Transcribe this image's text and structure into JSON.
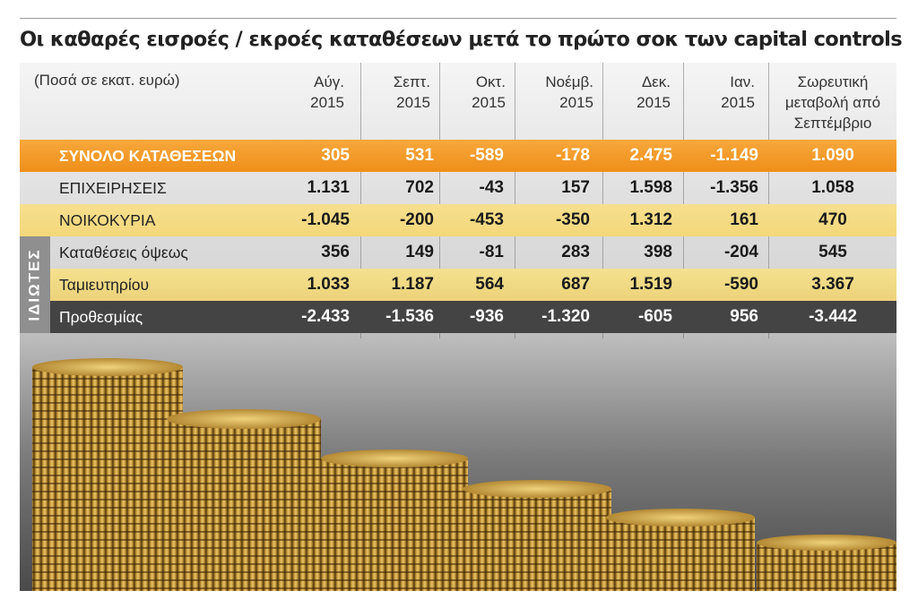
{
  "title": "Οι καθαρές εισροές / εκροές καταθέσεων μετά το πρώτο σοκ των capital controls",
  "unit_note": "(Ποσά σε εκατ. ευρώ)",
  "side_label": "ΙΔΙΩΤΕΣ",
  "columns": [
    {
      "line1": "Αύγ.",
      "line2": "2015"
    },
    {
      "line1": "Σεπτ.",
      "line2": "2015"
    },
    {
      "line1": "Οκτ.",
      "line2": "2015"
    },
    {
      "line1": "Νοέμβ.",
      "line2": "2015"
    },
    {
      "line1": "Δεκ.",
      "line2": "2015"
    },
    {
      "line1": "Ιαν.",
      "line2": "2015"
    },
    {
      "line1": "Σωρευτική",
      "line2": "μεταβολή από",
      "line3": "Σεπτέμβριο"
    }
  ],
  "colors": {
    "total_row": "#f0931e",
    "highlight_row": "#f4da80",
    "dark_row": "#444444"
  },
  "chart_data": {
    "type": "table",
    "title": "Οι καθαρές εισροές / εκροές καταθέσεων μετά το πρώτο σοκ των capital controls",
    "categories": [
      "Αύγ. 2015",
      "Σεπτ. 2015",
      "Οκτ. 2015",
      "Νοέμβ. 2015",
      "Δεκ. 2015",
      "Ιαν. 2015",
      "Σωρευτική μεταβολή από Σεπτέμβριο"
    ],
    "rows": [
      {
        "label": "ΣΥΝΟΛΟ ΚΑΤΑΘΕΣΕΩΝ",
        "values": [
          "305",
          "531",
          "-589",
          "-178",
          "2.475",
          "-1.149",
          "1.090"
        ]
      },
      {
        "label": "ΕΠΙΧΕΙΡΗΣΕΙΣ",
        "values": [
          "1.131",
          "702",
          "-43",
          "157",
          "1.598",
          "-1.356",
          "1.058"
        ]
      },
      {
        "label": "ΝΟΙΚΟΚΥΡΙΑ",
        "values": [
          "-1.045",
          "-200",
          "-453",
          "-350",
          "1.312",
          "161",
          "470"
        ]
      },
      {
        "label": "Καταθέσεις όψεως",
        "values": [
          "356",
          "149",
          "-81",
          "283",
          "398",
          "-204",
          "545"
        ]
      },
      {
        "label": "Ταμιευτηρίου",
        "values": [
          "1.033",
          "1.187",
          "564",
          "687",
          "1.519",
          "-590",
          "3.367"
        ]
      },
      {
        "label": "Προθεσμίας",
        "values": [
          "-2.433",
          "-1.536",
          "-936",
          "-1.320",
          "-605",
          "956",
          "-3.442"
        ]
      }
    ]
  }
}
